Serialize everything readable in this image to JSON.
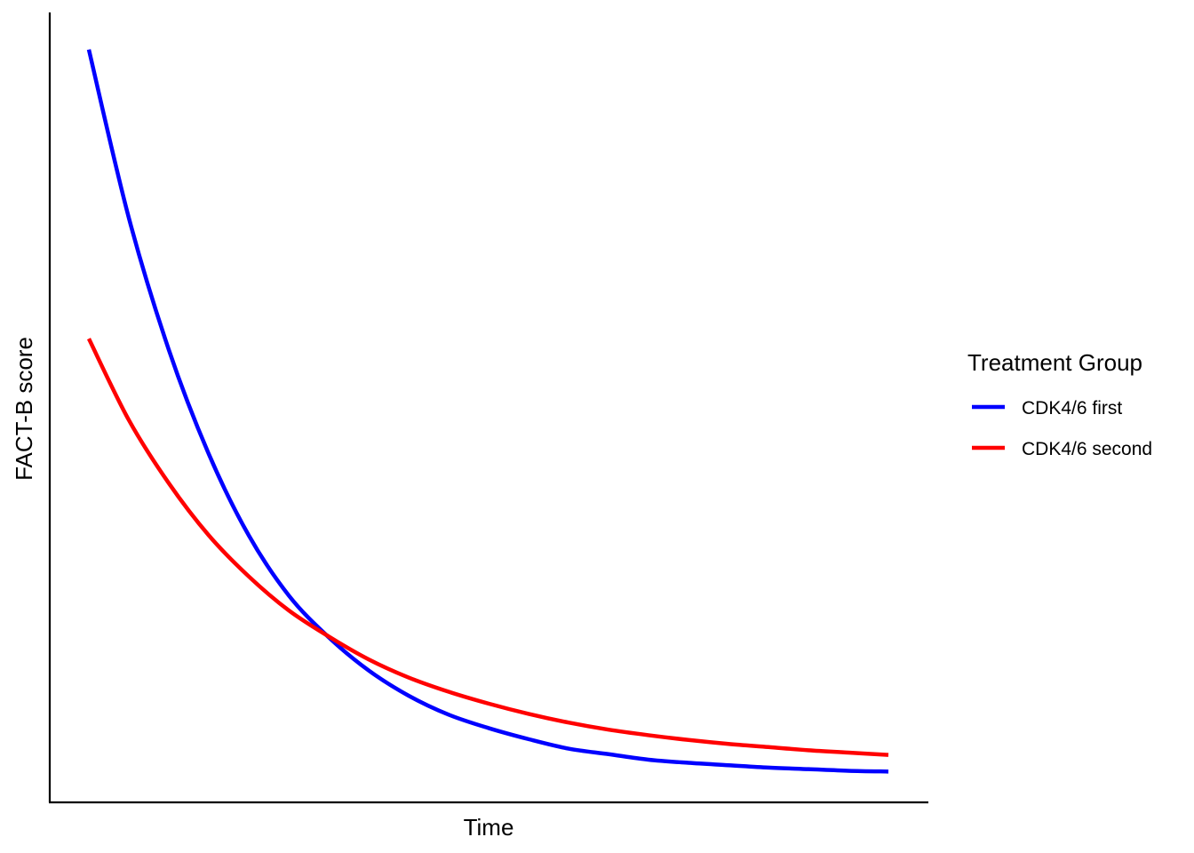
{
  "chart_data": {
    "type": "line",
    "title": "",
    "xlabel": "Time",
    "ylabel": "FACT-B score",
    "x_tick_labels": [],
    "y_tick_labels": [],
    "grid": false,
    "legend": {
      "title": "Treatment Group",
      "placement": "right"
    },
    "xlim": [
      0,
      1
    ],
    "ylim": [
      0,
      1
    ],
    "series": [
      {
        "name": "CDK4/6 first",
        "color": "#0000FF",
        "x": [
          0.0,
          0.05,
          0.1,
          0.15,
          0.2,
          0.25,
          0.3,
          0.35,
          0.4,
          0.45,
          0.5,
          0.55,
          0.6,
          0.65,
          0.7,
          0.75,
          0.8,
          0.85,
          0.9,
          0.95,
          1.0
        ],
        "y": [
          0.953,
          0.74,
          0.573,
          0.441,
          0.338,
          0.262,
          0.209,
          0.167,
          0.135,
          0.111,
          0.094,
          0.08,
          0.068,
          0.061,
          0.054,
          0.05,
          0.047,
          0.044,
          0.042,
          0.04,
          0.039
        ]
      },
      {
        "name": "CDK4/6 second",
        "color": "#FF0000",
        "x": [
          0.0,
          0.05,
          0.1,
          0.15,
          0.2,
          0.25,
          0.3,
          0.35,
          0.4,
          0.45,
          0.5,
          0.55,
          0.6,
          0.65,
          0.7,
          0.75,
          0.8,
          0.85,
          0.9,
          0.95,
          1.0
        ],
        "y": [
          0.587,
          0.484,
          0.404,
          0.338,
          0.286,
          0.243,
          0.21,
          0.181,
          0.158,
          0.14,
          0.125,
          0.112,
          0.101,
          0.092,
          0.085,
          0.079,
          0.074,
          0.07,
          0.066,
          0.063,
          0.06
        ]
      }
    ]
  }
}
